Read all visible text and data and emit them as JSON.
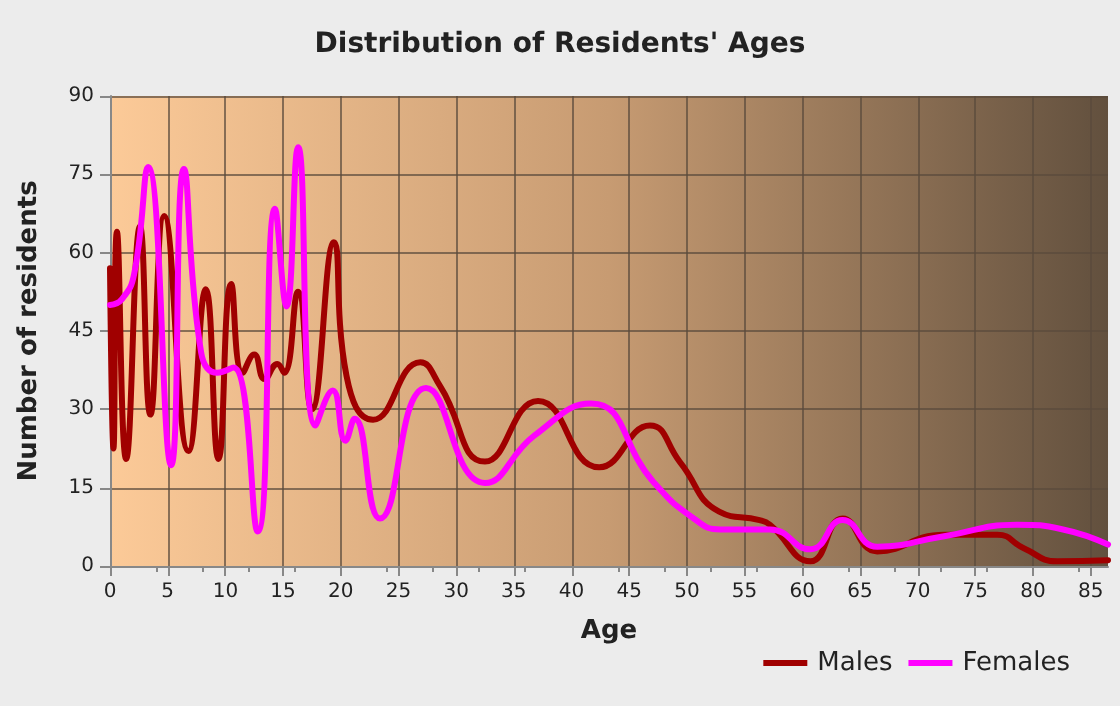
{
  "chart_data": {
    "type": "line",
    "title": "Distribution of Residents' Ages",
    "xlabel": "Age",
    "ylabel": "Number of residents",
    "xlim": [
      0,
      86.5
    ],
    "xticks": [
      0,
      5,
      10,
      15,
      20,
      25,
      30,
      35,
      40,
      45,
      50,
      55,
      60,
      65,
      70,
      75,
      80,
      85
    ],
    "ylim": [
      0,
      90
    ],
    "yticks": [
      0,
      15,
      30,
      45,
      60,
      75,
      90
    ],
    "grid": true,
    "legend": "bottom right",
    "marker": "none",
    "line_style": "solid",
    "series": [
      {
        "name": "Males",
        "color": "#a00000",
        "x": [
          0,
          0.3,
          0.6,
          1.4,
          2.6,
          3.5,
          4.7,
          6.8,
          8.3,
          9.4,
          10.5,
          11.5,
          12.5,
          13.4,
          14.5,
          15.1,
          16.3,
          17.5,
          19.4,
          20.5,
          22.8,
          26.9,
          28.6,
          32.5,
          37.1,
          42.4,
          46.8,
          49.4,
          52.8,
          56.3,
          57.2,
          60.7,
          63.5,
          66.5,
          72.3,
          76.9,
          79.2,
          82.1,
          86.5
        ],
        "values": [
          57,
          22.5,
          64,
          20.5,
          65,
          29,
          67,
          22,
          53,
          20.5,
          54,
          37,
          40.5,
          35.8,
          38.7,
          37,
          52.5,
          30,
          62,
          36.4,
          28,
          39,
          34.5,
          20,
          31.6,
          18.9,
          26.9,
          19.9,
          10.4,
          8.8,
          7.9,
          0.9,
          9.1,
          2.8,
          6,
          6,
          3.4,
          0.9,
          1.1
        ]
      },
      {
        "name": "Females",
        "color": "#ff00ff",
        "x": [
          0,
          1,
          2.1,
          3.3,
          5.3,
          6.4,
          7.9,
          9.3,
          10.7,
          12.8,
          14.3,
          15.3,
          16.3,
          17.8,
          19.3,
          20.4,
          21.2,
          23.4,
          27.4,
          32.5,
          36.8,
          41.7,
          47.1,
          50.6,
          52.9,
          56.3,
          57.2,
          60.7,
          63.5,
          66.5,
          72.3,
          78.6,
          82.6,
          86.5
        ],
        "values": [
          50,
          51,
          56,
          76.4,
          19.3,
          76,
          40.9,
          37,
          38,
          6.6,
          68.4,
          49.7,
          80.2,
          26.9,
          33.6,
          24,
          28.2,
          9.1,
          34.1,
          15.9,
          25,
          31.1,
          16.1,
          9.1,
          7,
          7,
          7,
          3.2,
          8.8,
          3.7,
          5.7,
          7.9,
          7,
          4.1
        ]
      }
    ]
  }
}
